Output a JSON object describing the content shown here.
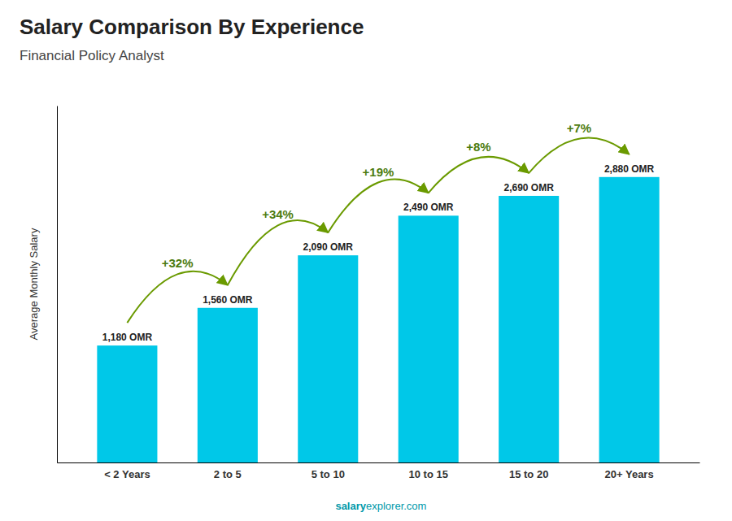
{
  "chart_data": {
    "type": "bar",
    "title": "Salary Comparison By Experience",
    "subtitle": "Financial Policy Analyst",
    "ylabel": "Average Monthly Salary",
    "categories": [
      "< 2 Years",
      "2 to 5",
      "5 to 10",
      "10 to 15",
      "15 to 20",
      "20+ Years"
    ],
    "values": [
      1180,
      1560,
      2090,
      2490,
      2690,
      2880
    ],
    "value_labels": [
      "1,180 OMR",
      "1,560 OMR",
      "2,090 OMR",
      "2,490 OMR",
      "2,690 OMR",
      "2,880 OMR"
    ],
    "data_labels": true,
    "pct_changes": [
      null,
      "+32%",
      "+34%",
      "+19%",
      "+8%",
      "+7%"
    ],
    "annotations": [
      "salary",
      "explorer.com"
    ],
    "color": "#00c8e8",
    "ylim": [
      0,
      3600
    ],
    "tick_labels": "x",
    "grid": false
  }
}
